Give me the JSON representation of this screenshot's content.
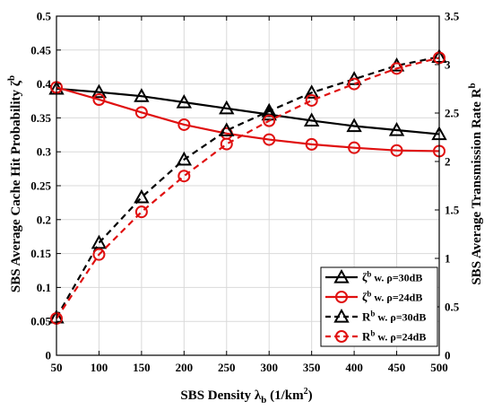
{
  "chart_data": {
    "type": "line",
    "x": [
      50,
      100,
      150,
      200,
      250,
      300,
      350,
      400,
      450,
      500
    ],
    "xlim": [
      50,
      500
    ],
    "xticks": [
      "50",
      "100",
      "150",
      "200",
      "250",
      "300",
      "350",
      "400",
      "450",
      "500"
    ],
    "xlabel": "SBS Density λ",
    "xlabel_sub": "b",
    "xlabel_unit_pre": " (1/km",
    "xlabel_unit_sup": "2",
    "xlabel_unit_post": ")",
    "ylabel_left": "SBS Average Cache Hit Probability ζ",
    "ylabel_left_sup": "b",
    "ylim_left": [
      0,
      0.5
    ],
    "yticks_left": [
      "0",
      "0.05",
      "0.1",
      "0.15",
      "0.2",
      "0.25",
      "0.3",
      "0.35",
      "0.4",
      "0.45",
      "0.5"
    ],
    "ylabel_right": "SBS Average Transmission Rate R",
    "ylabel_right_sup": "b",
    "ylim_right": [
      0,
      3.5
    ],
    "yticks_right": [
      "0",
      "0.5",
      "1",
      "1.5",
      "2",
      "2.5",
      "3",
      "3.5"
    ],
    "grid": true,
    "legend_position": "bottom-right",
    "series": [
      {
        "name": "ζ",
        "sup": "b",
        "rest": " w. ρ=30dB",
        "axis": "left",
        "color": "#000000",
        "style": "solid",
        "marker": "triangle",
        "values": [
          0.393,
          0.388,
          0.382,
          0.373,
          0.364,
          0.355,
          0.346,
          0.338,
          0.332,
          0.326
        ]
      },
      {
        "name": "ζ",
        "sup": "b",
        "rest": " w. ρ=24dB",
        "axis": "left",
        "color": "#e01010",
        "style": "solid",
        "marker": "circle",
        "values": [
          0.395,
          0.377,
          0.358,
          0.34,
          0.327,
          0.318,
          0.311,
          0.306,
          0.302,
          0.301
        ]
      },
      {
        "name": "R",
        "sup": "b",
        "rest": " w. ρ=30dB",
        "axis": "right",
        "color": "#000000",
        "style": "dashed",
        "marker": "triangle",
        "values": [
          0.39,
          1.16,
          1.63,
          2.02,
          2.32,
          2.52,
          2.71,
          2.85,
          2.99,
          3.08
        ]
      },
      {
        "name": "R",
        "sup": "b",
        "rest": " w. ρ=24dB",
        "axis": "right",
        "color": "#e01010",
        "style": "dashed",
        "marker": "circle",
        "values": [
          0.38,
          1.04,
          1.48,
          1.85,
          2.18,
          2.42,
          2.63,
          2.8,
          2.96,
          3.07
        ]
      }
    ]
  }
}
